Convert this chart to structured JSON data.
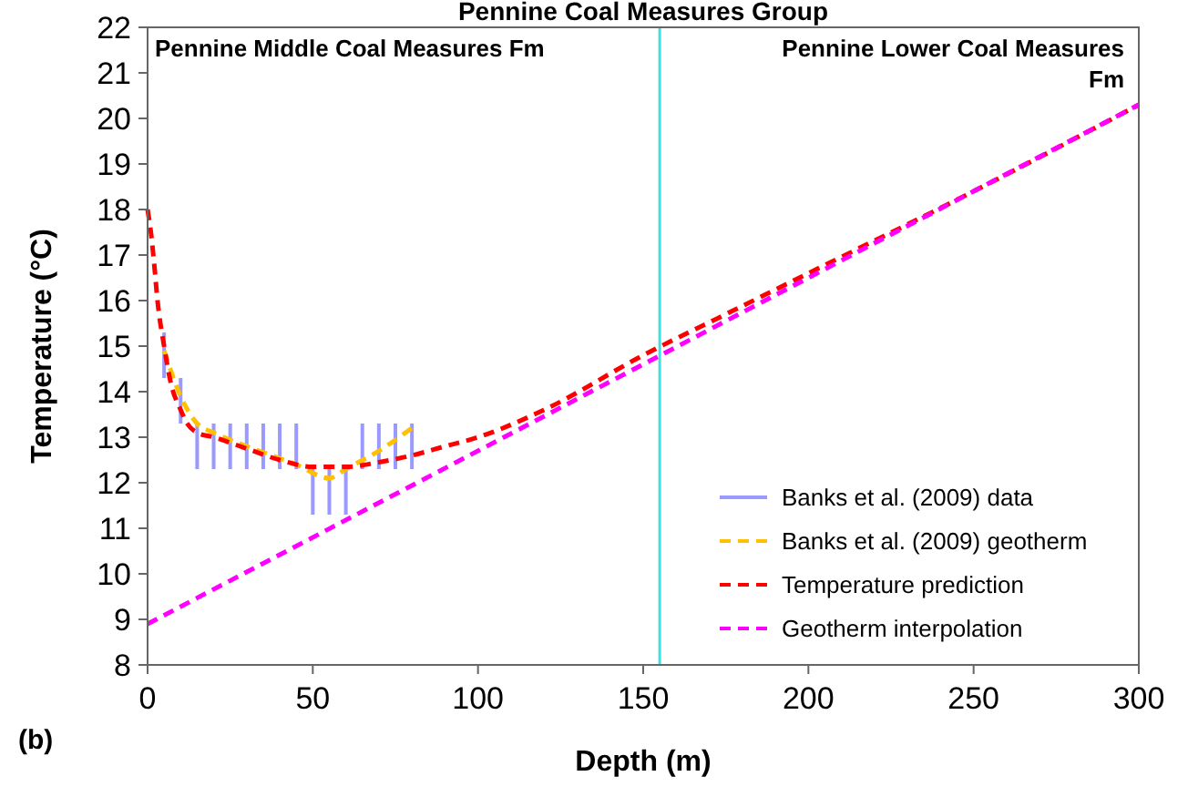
{
  "chart_data": {
    "type": "line",
    "title": "Pennine Coal Measures Group",
    "xlabel": "Depth (m)",
    "ylabel": "Temperature (°C)",
    "xlim": [
      0,
      300
    ],
    "xticks": [
      0,
      50,
      100,
      150,
      200,
      250,
      300
    ],
    "ylim": [
      8,
      22
    ],
    "yticks": [
      8,
      9,
      10,
      11,
      12,
      13,
      14,
      15,
      16,
      17,
      18,
      19,
      20,
      21,
      22
    ],
    "grid": false,
    "legend": "bottom right",
    "line_style": "dashed",
    "series": [
      {
        "name": "Banks et al. (2009) data",
        "type": "bar",
        "color": "#9999ff",
        "x": [
          5,
          10,
          15,
          20,
          25,
          30,
          35,
          40,
          45,
          50,
          55,
          60,
          65,
          70,
          75,
          80
        ],
        "base": [
          14.3,
          13.3,
          12.3,
          12.3,
          12.3,
          12.3,
          12.3,
          12.3,
          12.3,
          11.3,
          11.3,
          11.3,
          12.3,
          12.3,
          12.3,
          12.3
        ],
        "values": [
          1,
          1,
          1,
          1,
          1,
          1,
          1,
          1,
          1,
          1,
          1,
          1,
          1,
          1,
          1,
          1
        ]
      },
      {
        "name": "Banks et al. (2009) geotherm",
        "type": "line",
        "line_style": "dashed",
        "color": "#ffc000",
        "x": [
          5,
          10,
          15,
          20,
          30,
          45,
          55,
          60,
          70,
          80
        ],
        "values": [
          14.9,
          13.9,
          13.3,
          13.1,
          12.8,
          12.4,
          12.1,
          12.3,
          12.7,
          13.2
        ]
      },
      {
        "name": "Temperature prediction",
        "color": "#ff0000",
        "x": [
          0,
          1,
          2,
          3,
          5,
          7,
          10,
          12,
          15,
          20,
          30,
          40,
          50,
          60,
          70,
          80,
          90,
          100,
          120,
          150,
          175,
          200,
          250,
          300
        ],
        "values": [
          18,
          17.5,
          16.8,
          16,
          15,
          14.2,
          13.6,
          13.3,
          13.1,
          13,
          12.75,
          12.5,
          12.35,
          12.35,
          12.45,
          12.6,
          12.8,
          13,
          13.6,
          14.8,
          15.7,
          16.6,
          18.4,
          20.3
        ]
      },
      {
        "name": "Geotherm interpolation",
        "color": "#ff00ff",
        "x": [
          0,
          300
        ],
        "values": [
          8.9,
          20.3
        ]
      }
    ],
    "ref_lines": [
      {
        "axis": "x",
        "value": 155,
        "color": "#40e0e0"
      }
    ],
    "annotations": [
      "Pennine Middle Coal Measures Fm",
      "Pennine Lower Coal Measures Fm",
      "(b)"
    ]
  }
}
